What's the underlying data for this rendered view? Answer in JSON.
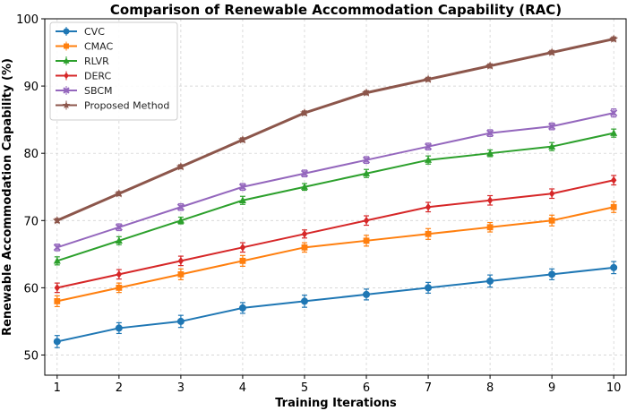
{
  "chart_data": {
    "type": "line",
    "title": "Comparison of Renewable Accommodation Capability (RAC)",
    "xlabel": "Training Iterations",
    "ylabel": "Renewable Accommodation Capability (%)",
    "x": [
      1,
      2,
      3,
      4,
      5,
      6,
      7,
      8,
      9,
      10
    ],
    "xlim": [
      0.8,
      10.2
    ],
    "ylim": [
      47,
      100
    ],
    "yticks": [
      50,
      60,
      70,
      80,
      90,
      100
    ],
    "grid": true,
    "legend_position": "top-left",
    "series": [
      {
        "name": "CVC",
        "color": "#1f77b4",
        "marker": "circle",
        "values": [
          52,
          54,
          55,
          57,
          58,
          59,
          60,
          61,
          62,
          63
        ],
        "errors": [
          0.9,
          0.8,
          0.9,
          0.8,
          0.9,
          0.8,
          0.8,
          0.9,
          0.8,
          0.9
        ]
      },
      {
        "name": "CMAC",
        "color": "#ff7f0e",
        "marker": "square",
        "values": [
          58,
          60,
          62,
          64,
          66,
          67,
          68,
          69,
          70,
          72
        ],
        "errors": [
          0.8,
          0.7,
          0.8,
          0.8,
          0.7,
          0.8,
          0.8,
          0.7,
          0.8,
          0.8
        ]
      },
      {
        "name": "RLVR",
        "color": "#2ca02c",
        "marker": "triangle",
        "values": [
          64,
          67,
          70,
          73,
          75,
          77,
          79,
          80,
          81,
          83
        ],
        "errors": [
          0.6,
          0.6,
          0.5,
          0.6,
          0.5,
          0.6,
          0.6,
          0.5,
          0.6,
          0.6
        ]
      },
      {
        "name": "DERC",
        "color": "#d62728",
        "marker": "diamond",
        "values": [
          60,
          62,
          64,
          66,
          68,
          70,
          72,
          73,
          74,
          76
        ],
        "errors": [
          0.7,
          0.7,
          0.7,
          0.7,
          0.6,
          0.7,
          0.7,
          0.7,
          0.7,
          0.7
        ]
      },
      {
        "name": "SBCM",
        "color": "#9467bd",
        "marker": "x",
        "values": [
          66,
          69,
          72,
          75,
          77,
          79,
          81,
          83,
          84,
          86
        ],
        "errors": [
          0.5,
          0.5,
          0.5,
          0.5,
          0.5,
          0.5,
          0.5,
          0.5,
          0.5,
          0.6
        ]
      },
      {
        "name": "Proposed Method",
        "color": "#8c564b",
        "marker": "star",
        "values": [
          70,
          74,
          78,
          82,
          86,
          89,
          91,
          93,
          95,
          97
        ],
        "errors": [
          0.3,
          0.3,
          0.3,
          0.3,
          0.3,
          0.3,
          0.3,
          0.3,
          0.3,
          0.3
        ]
      }
    ]
  }
}
